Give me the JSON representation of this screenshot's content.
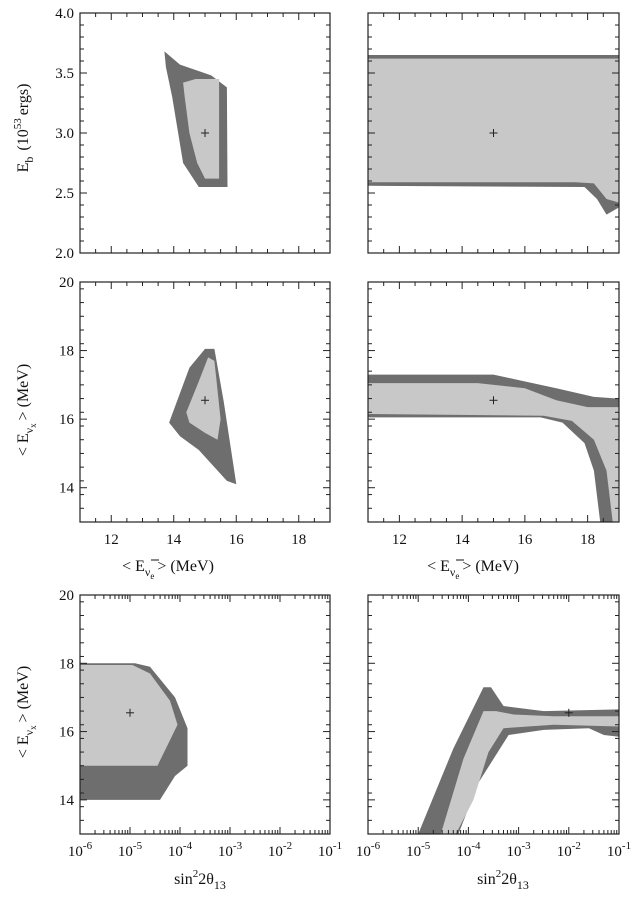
{
  "colors": {
    "outer_region": "#6e6e6e",
    "inner_region": "#c8c8c8",
    "frame": "#222222"
  },
  "labels": {
    "eb_ylabel": "E",
    "eb_ylabel_sub": "b",
    "eb_ylabel_units": "(10",
    "eb_ylabel_exp": "53",
    "eb_ylabel_tail": "ergs)",
    "ex_ylabel_pre": "< E",
    "ex_ylabel_sub": "ν",
    "ex_ylabel_subsub": "x",
    "ex_ylabel_post": ">  (MeV)",
    "ee_xlabel_pre": "< E",
    "ee_xlabel_sub": "ν",
    "ee_xlabel_subsub": "e",
    "ee_xlabel_post": ">  (MeV)",
    "sin_xlabel_pre": "sin",
    "sin_xlabel_sup": "2",
    "sin_xlabel_mid": "2θ",
    "sin_xlabel_sub": "13"
  },
  "chart_data": [
    {
      "panel": "top-left",
      "type": "contour",
      "xlim": [
        11,
        19
      ],
      "x_ticks": [
        12,
        14,
        16,
        18
      ],
      "x_tick_labels_shown": false,
      "ylim": [
        2.0,
        4.0
      ],
      "y_ticks": [
        2.0,
        2.5,
        3.0,
        3.5,
        4.0
      ],
      "y_tick_labels": [
        "2.0",
        "2.5",
        "3.0",
        "3.5",
        "4.0"
      ],
      "best_fit": [
        15.0,
        3.0
      ],
      "outer": [
        [
          13.7,
          3.68
        ],
        [
          14.2,
          3.57
        ],
        [
          15.2,
          3.48
        ],
        [
          15.7,
          3.38
        ],
        [
          15.72,
          2.55
        ],
        [
          14.8,
          2.55
        ],
        [
          14.3,
          2.75
        ],
        [
          13.95,
          3.3
        ],
        [
          13.75,
          3.55
        ]
      ],
      "inner": [
        [
          14.3,
          3.42
        ],
        [
          14.7,
          3.45
        ],
        [
          15.45,
          3.45
        ],
        [
          15.45,
          2.62
        ],
        [
          15.0,
          2.62
        ],
        [
          14.75,
          2.75
        ],
        [
          14.5,
          3.0
        ],
        [
          14.35,
          3.3
        ]
      ]
    },
    {
      "panel": "top-right",
      "type": "contour",
      "xlim": [
        11,
        19
      ],
      "x_ticks": [
        12,
        14,
        16,
        18
      ],
      "x_tick_labels_shown": false,
      "ylim": [
        2.0,
        4.0
      ],
      "y_ticks": [
        2.0,
        2.5,
        3.0,
        3.5,
        4.0
      ],
      "y_tick_labels_shown": false,
      "best_fit": [
        15.0,
        3.0
      ],
      "outer": [
        [
          11.0,
          3.65
        ],
        [
          19.0,
          3.65
        ],
        [
          19.0,
          2.38
        ],
        [
          18.6,
          2.32
        ],
        [
          18.3,
          2.45
        ],
        [
          17.9,
          2.55
        ],
        [
          11.0,
          2.56
        ]
      ],
      "inner": [
        [
          11.0,
          3.62
        ],
        [
          19.0,
          3.62
        ],
        [
          19.0,
          2.42
        ],
        [
          18.6,
          2.45
        ],
        [
          18.2,
          2.58
        ],
        [
          17.6,
          2.59
        ],
        [
          11.0,
          2.59
        ]
      ]
    },
    {
      "panel": "middle-left",
      "type": "contour",
      "xlim": [
        11,
        19
      ],
      "x_ticks": [
        12,
        14,
        16,
        18
      ],
      "x_tick_labels": [
        "12",
        "14",
        "16",
        "18"
      ],
      "ylim": [
        13,
        20
      ],
      "y_ticks": [
        14,
        16,
        18,
        20
      ],
      "y_tick_labels": [
        "14",
        "16",
        "18",
        "20"
      ],
      "best_fit": [
        15.0,
        16.55
      ],
      "outer": [
        [
          13.85,
          15.9
        ],
        [
          14.5,
          17.5
        ],
        [
          15.0,
          18.05
        ],
        [
          15.3,
          18.05
        ],
        [
          15.6,
          16.5
        ],
        [
          16.0,
          14.1
        ],
        [
          15.7,
          14.2
        ],
        [
          14.8,
          15.1
        ],
        [
          14.2,
          15.5
        ]
      ],
      "inner": [
        [
          14.4,
          16.2
        ],
        [
          14.8,
          17.1
        ],
        [
          15.1,
          17.8
        ],
        [
          15.3,
          17.7
        ],
        [
          15.5,
          16.0
        ],
        [
          15.4,
          15.4
        ],
        [
          15.0,
          15.6
        ],
        [
          14.5,
          15.9
        ]
      ]
    },
    {
      "panel": "middle-right",
      "type": "contour",
      "xlim": [
        11,
        19
      ],
      "x_ticks": [
        12,
        14,
        16,
        18
      ],
      "x_tick_labels": [
        "12",
        "14",
        "16",
        "18"
      ],
      "ylim": [
        13,
        20
      ],
      "y_ticks": [
        14,
        16,
        18,
        20
      ],
      "y_tick_labels_shown": false,
      "best_fit": [
        15.0,
        16.55
      ],
      "outer": [
        [
          11.0,
          17.3
        ],
        [
          15.0,
          17.3
        ],
        [
          17.0,
          16.9
        ],
        [
          18.2,
          16.65
        ],
        [
          19.0,
          16.6
        ],
        [
          19.0,
          13.0
        ],
        [
          18.4,
          13.0
        ],
        [
          18.2,
          14.5
        ],
        [
          17.9,
          15.3
        ],
        [
          17.2,
          15.9
        ],
        [
          16.5,
          16.05
        ],
        [
          11.0,
          16.05
        ]
      ],
      "inner": [
        [
          11.0,
          17.05
        ],
        [
          14.5,
          17.05
        ],
        [
          16.0,
          16.9
        ],
        [
          17.0,
          16.55
        ],
        [
          18.0,
          16.35
        ],
        [
          19.0,
          16.35
        ],
        [
          19.0,
          13.0
        ],
        [
          18.8,
          13.0
        ],
        [
          18.6,
          14.5
        ],
        [
          18.2,
          15.4
        ],
        [
          17.5,
          15.95
        ],
        [
          16.6,
          16.1
        ],
        [
          11.0,
          16.15
        ]
      ]
    },
    {
      "panel": "bottom-left",
      "type": "contour",
      "x_scale": "log",
      "xlim": [
        -6,
        -1
      ],
      "x_ticks": [
        -6,
        -5,
        -4,
        -3,
        -2,
        -1
      ],
      "x_tick_labels": [
        "10^-6",
        "10^-5",
        "10^-4",
        "10^-3",
        "10^-2",
        "10^-1"
      ],
      "ylim": [
        13,
        20
      ],
      "y_ticks": [
        14,
        16,
        18,
        20
      ],
      "y_tick_labels": [
        "14",
        "16",
        "18",
        "20"
      ],
      "best_fit": [
        -5,
        16.55
      ],
      "outer": [
        [
          -6.0,
          18.0
        ],
        [
          -4.9,
          18.0
        ],
        [
          -4.6,
          17.9
        ],
        [
          -4.1,
          17.0
        ],
        [
          -3.85,
          16.1
        ],
        [
          -3.85,
          15.0
        ],
        [
          -4.1,
          14.7
        ],
        [
          -4.4,
          14.0
        ],
        [
          -6.0,
          14.0
        ]
      ],
      "inner": [
        [
          -6.0,
          17.95
        ],
        [
          -4.95,
          17.95
        ],
        [
          -4.6,
          17.7
        ],
        [
          -4.2,
          16.9
        ],
        [
          -4.05,
          16.2
        ],
        [
          -4.25,
          15.6
        ],
        [
          -4.45,
          15.0
        ],
        [
          -6.0,
          15.0
        ]
      ]
    },
    {
      "panel": "bottom-right",
      "type": "contour",
      "x_scale": "log",
      "xlim": [
        -6,
        -1
      ],
      "x_ticks": [
        -6,
        -5,
        -4,
        -3,
        -2,
        -1
      ],
      "x_tick_labels": [
        "10^-6",
        "10^-5",
        "10^-4",
        "10^-3",
        "10^-2",
        "10^-1"
      ],
      "ylim": [
        13,
        20
      ],
      "y_ticks": [
        14,
        16,
        18,
        20
      ],
      "y_tick_labels_shown": false,
      "best_fit": [
        -2,
        16.55
      ],
      "outer": [
        [
          -5.0,
          13.0
        ],
        [
          -4.3,
          15.5
        ],
        [
          -3.7,
          17.3
        ],
        [
          -3.55,
          17.3
        ],
        [
          -3.3,
          16.75
        ],
        [
          -2.5,
          16.6
        ],
        [
          -1.0,
          16.65
        ],
        [
          -1.0,
          15.85
        ],
        [
          -1.3,
          15.9
        ],
        [
          -1.6,
          16.1
        ],
        [
          -2.5,
          16.05
        ],
        [
          -3.2,
          15.9
        ],
        [
          -3.8,
          14.5
        ],
        [
          -4.2,
          13.0
        ]
      ],
      "inner": [
        [
          -4.55,
          13.0
        ],
        [
          -4.1,
          15.2
        ],
        [
          -3.7,
          16.6
        ],
        [
          -3.45,
          16.6
        ],
        [
          -3.1,
          16.5
        ],
        [
          -2.3,
          16.45
        ],
        [
          -1.0,
          16.45
        ],
        [
          -1.0,
          16.15
        ],
        [
          -2.3,
          16.2
        ],
        [
          -3.3,
          16.1
        ],
        [
          -3.6,
          15.4
        ],
        [
          -3.9,
          14.0
        ],
        [
          -4.25,
          13.0
        ]
      ]
    }
  ]
}
